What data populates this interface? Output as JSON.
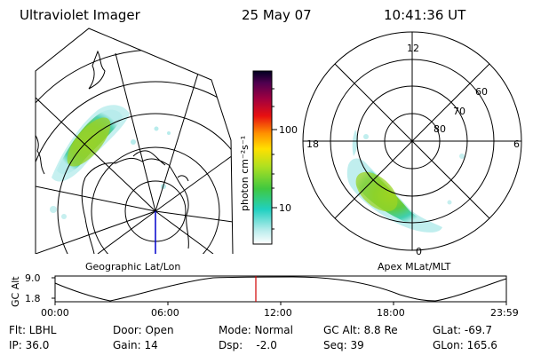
{
  "header": {
    "instrument": "Ultraviolet Imager",
    "date": "25 May 07",
    "time": "10:41:36 UT"
  },
  "left_panel": {
    "caption": "Geographic Lat/Lon"
  },
  "right_panel": {
    "caption": "Apex MLat/MLT",
    "mlt_labels": {
      "top": "12",
      "left": "18",
      "right": "6",
      "bottom": "0"
    },
    "lat_labels": [
      "60",
      "70",
      "80"
    ]
  },
  "colorbar": {
    "unit_label": "photon cm⁻²s⁻¹",
    "tick_labels": [
      "100",
      "10"
    ],
    "scale": "log"
  },
  "altitude_plot": {
    "ylabel": "GC Alt",
    "y_ticks": [
      "9.0",
      "1.8"
    ],
    "x_ticks": [
      "00:00",
      "06:00",
      "12:00",
      "18:00",
      "23:59"
    ],
    "current_time_marker": "10:41:36"
  },
  "info": {
    "col1": [
      "Flt: LBHL",
      "IP: 36.0"
    ],
    "col2": [
      "Door: Open",
      "Gain: 14"
    ],
    "col3": [
      "Mode: Normal",
      "Dsp:    -2.0"
    ],
    "col4": [
      "GC Alt: 8.8 Re",
      "Seq: 39"
    ],
    "col5": [
      "GLat: -69.7",
      "GLon: 165.6"
    ]
  },
  "colors": {
    "marker": "#d00000",
    "meridian": "#0000cc",
    "line": "#000000"
  }
}
